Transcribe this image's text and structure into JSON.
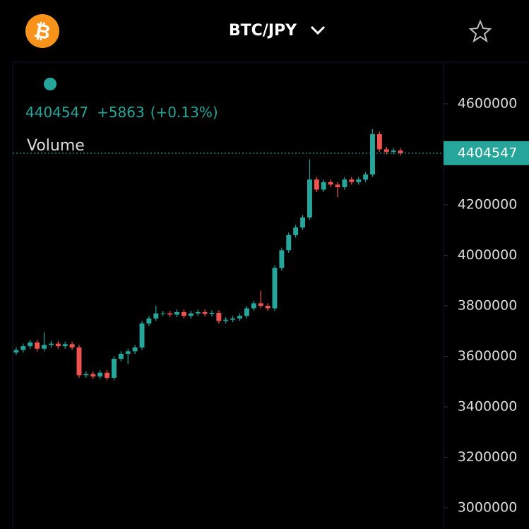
{
  "header": {
    "title": "BTC/JPY"
  },
  "chart_data": {
    "type": "candlestick",
    "series_label": "Volume",
    "last_price": 4404547,
    "change": "+5863",
    "change_pct": "(+0.13%)",
    "up_color": "#26a69a",
    "down_color": "#ef5350",
    "ylim": [
      2916000,
      4765000
    ],
    "yticks": [
      3000000,
      3200000,
      3400000,
      3600000,
      3800000,
      4000000,
      4200000,
      4600000
    ],
    "open": [
      3615000,
      3625000,
      3640000,
      3655000,
      3630000,
      3645000,
      3650000,
      3640000,
      3648000,
      3635000,
      3525000,
      3530000,
      3520000,
      3535000,
      3515000,
      3590000,
      3610000,
      3620000,
      3635000,
      3730000,
      3750000,
      3770000,
      3770000,
      3765000,
      3775000,
      3760000,
      3770000,
      3775000,
      3768000,
      3772000,
      3740000,
      3745000,
      3750000,
      3760000,
      3790000,
      3810000,
      3800000,
      3790000,
      3950000,
      4020000,
      4080000,
      4110000,
      4150000,
      4300000,
      4260000,
      4290000,
      4280000,
      4270000,
      4300000,
      4290000,
      4300000,
      4320000,
      4480000,
      4420000,
      4410000,
      4415000
    ],
    "high": [
      3635000,
      3650000,
      3665000,
      3665000,
      3695000,
      3660000,
      3660000,
      3658000,
      3658000,
      3645000,
      3540000,
      3540000,
      3545000,
      3545000,
      3600000,
      3620000,
      3630000,
      3645000,
      3740000,
      3760000,
      3800000,
      3780000,
      3780000,
      3785000,
      3785000,
      3780000,
      3785000,
      3785000,
      3782000,
      3782000,
      3755000,
      3760000,
      3770000,
      3800000,
      3820000,
      3860000,
      3810000,
      3960000,
      4030000,
      4090000,
      4120000,
      4160000,
      4380000,
      4310000,
      4300000,
      4300000,
      4290000,
      4310000,
      4310000,
      4310000,
      4330000,
      4500000,
      4490000,
      4430000,
      4425000,
      4425000
    ],
    "low": [
      3605000,
      3615000,
      3630000,
      3620000,
      3620000,
      3635000,
      3630000,
      3630000,
      3625000,
      3515000,
      3515000,
      3510000,
      3510000,
      3505000,
      3505000,
      3580000,
      3570000,
      3610000,
      3625000,
      3720000,
      3740000,
      3760000,
      3755000,
      3755000,
      3750000,
      3750000,
      3760000,
      3758000,
      3758000,
      3730000,
      3730000,
      3735000,
      3740000,
      3750000,
      3780000,
      3790000,
      3780000,
      3780000,
      3940000,
      4010000,
      4070000,
      4100000,
      4140000,
      4250000,
      4250000,
      4270000,
      4230000,
      4260000,
      4280000,
      4280000,
      4290000,
      4310000,
      4410000,
      4400000,
      4400000,
      4395000
    ],
    "close": [
      3625000,
      3640000,
      3655000,
      3630000,
      3645000,
      3650000,
      3640000,
      3648000,
      3635000,
      3525000,
      3530000,
      3520000,
      3535000,
      3515000,
      3590000,
      3610000,
      3620000,
      3635000,
      3730000,
      3750000,
      3770000,
      3770000,
      3765000,
      3775000,
      3760000,
      3770000,
      3775000,
      3768000,
      3772000,
      3740000,
      3745000,
      3750000,
      3760000,
      3790000,
      3810000,
      3800000,
      3790000,
      3950000,
      4020000,
      4080000,
      4110000,
      4150000,
      4300000,
      4260000,
      4290000,
      4280000,
      4270000,
      4300000,
      4290000,
      4300000,
      4320000,
      4480000,
      4420000,
      4410000,
      4415000,
      4404547
    ]
  }
}
